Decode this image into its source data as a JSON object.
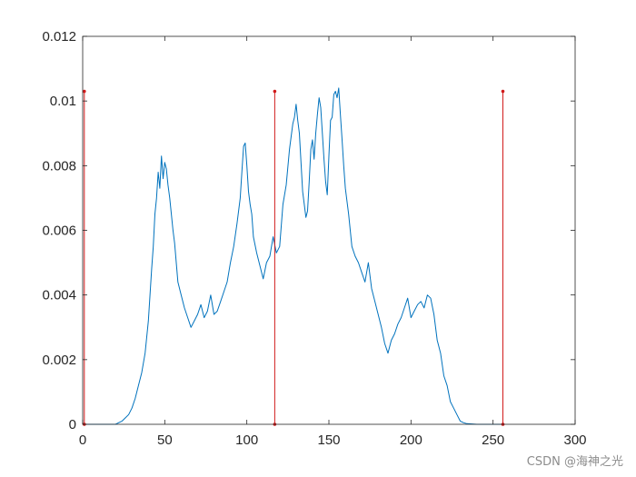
{
  "chart_data": {
    "type": "line",
    "title": "",
    "xlabel": "",
    "ylabel": "",
    "xlim": [
      0,
      300
    ],
    "ylim": [
      0,
      0.012
    ],
    "xticks": [
      0,
      50,
      100,
      150,
      200,
      250,
      300
    ],
    "yticks": [
      0,
      0.002,
      0.004,
      0.006,
      0.008,
      0.01,
      0.012
    ],
    "xtick_labels": [
      "0",
      "50",
      "100",
      "150",
      "200",
      "250",
      "300"
    ],
    "ytick_labels": [
      "0",
      "0.002",
      "0.004",
      "0.006",
      "0.008",
      "0.01",
      "0.012"
    ],
    "grid": false,
    "series": [
      {
        "kind": "line",
        "color": "#0072BD",
        "x": [
          0,
          20,
          22,
          24,
          26,
          28,
          30,
          32,
          34,
          36,
          38,
          40,
          41,
          42,
          43,
          44,
          45,
          46,
          47,
          48,
          49,
          50,
          51,
          52,
          53,
          54,
          55,
          56,
          57,
          58,
          60,
          62,
          64,
          66,
          68,
          70,
          72,
          74,
          76,
          78,
          80,
          82,
          84,
          86,
          88,
          90,
          92,
          94,
          96,
          97,
          98,
          99,
          100,
          101,
          102,
          103,
          104,
          106,
          108,
          110,
          112,
          114,
          116,
          118,
          120,
          122,
          124,
          126,
          128,
          129,
          130,
          131,
          132,
          134,
          135,
          136,
          137,
          138,
          139,
          140,
          141,
          142,
          143,
          144,
          145,
          146,
          147,
          148,
          149,
          150,
          151,
          152,
          153,
          154,
          155,
          156,
          157,
          158,
          159,
          160,
          162,
          164,
          166,
          168,
          170,
          172,
          174,
          176,
          178,
          180,
          182,
          184,
          186,
          188,
          190,
          192,
          194,
          196,
          198,
          200,
          202,
          204,
          206,
          208,
          210,
          212,
          214,
          216,
          218,
          220,
          222,
          224,
          226,
          228,
          230,
          232,
          234,
          240,
          250,
          256
        ],
        "y": [
          0,
          0,
          5e-05,
          0.0001,
          0.0002,
          0.0003,
          0.0005,
          0.0008,
          0.0012,
          0.0016,
          0.0022,
          0.0032,
          0.004,
          0.0048,
          0.0055,
          0.0065,
          0.007,
          0.0078,
          0.0073,
          0.0083,
          0.0076,
          0.0081,
          0.0079,
          0.0074,
          0.007,
          0.0065,
          0.006,
          0.0056,
          0.005,
          0.0044,
          0.004,
          0.0036,
          0.0033,
          0.003,
          0.0032,
          0.0034,
          0.0037,
          0.0033,
          0.0035,
          0.004,
          0.0034,
          0.0035,
          0.0038,
          0.0041,
          0.0044,
          0.005,
          0.0055,
          0.0062,
          0.007,
          0.0078,
          0.0086,
          0.0087,
          0.008,
          0.0072,
          0.0068,
          0.0065,
          0.0058,
          0.0053,
          0.0049,
          0.0045,
          0.005,
          0.0052,
          0.0058,
          0.0053,
          0.0055,
          0.0068,
          0.0074,
          0.0085,
          0.0093,
          0.0095,
          0.0099,
          0.0094,
          0.009,
          0.0072,
          0.0068,
          0.0064,
          0.0066,
          0.0075,
          0.0085,
          0.0088,
          0.0082,
          0.009,
          0.0096,
          0.0101,
          0.0098,
          0.009,
          0.0082,
          0.0075,
          0.0071,
          0.0083,
          0.0094,
          0.0095,
          0.0102,
          0.0103,
          0.0101,
          0.0104,
          0.0096,
          0.0088,
          0.008,
          0.0073,
          0.0065,
          0.0055,
          0.0052,
          0.005,
          0.0047,
          0.0044,
          0.005,
          0.0042,
          0.0038,
          0.0034,
          0.003,
          0.0025,
          0.0022,
          0.0026,
          0.0028,
          0.0031,
          0.0033,
          0.0036,
          0.0039,
          0.0033,
          0.0035,
          0.0037,
          0.0038,
          0.0036,
          0.004,
          0.0039,
          0.0034,
          0.0026,
          0.0022,
          0.0015,
          0.0012,
          0.0007,
          0.0005,
          0.0003,
          0.0001,
          5e-05,
          2e-05,
          0,
          0,
          0
        ]
      }
    ],
    "vertical_lines": {
      "color": "#D11A1A",
      "x": [
        1,
        117,
        256
      ],
      "y_top": 0.0103
    }
  },
  "watermark": "CSDN @海神之光"
}
